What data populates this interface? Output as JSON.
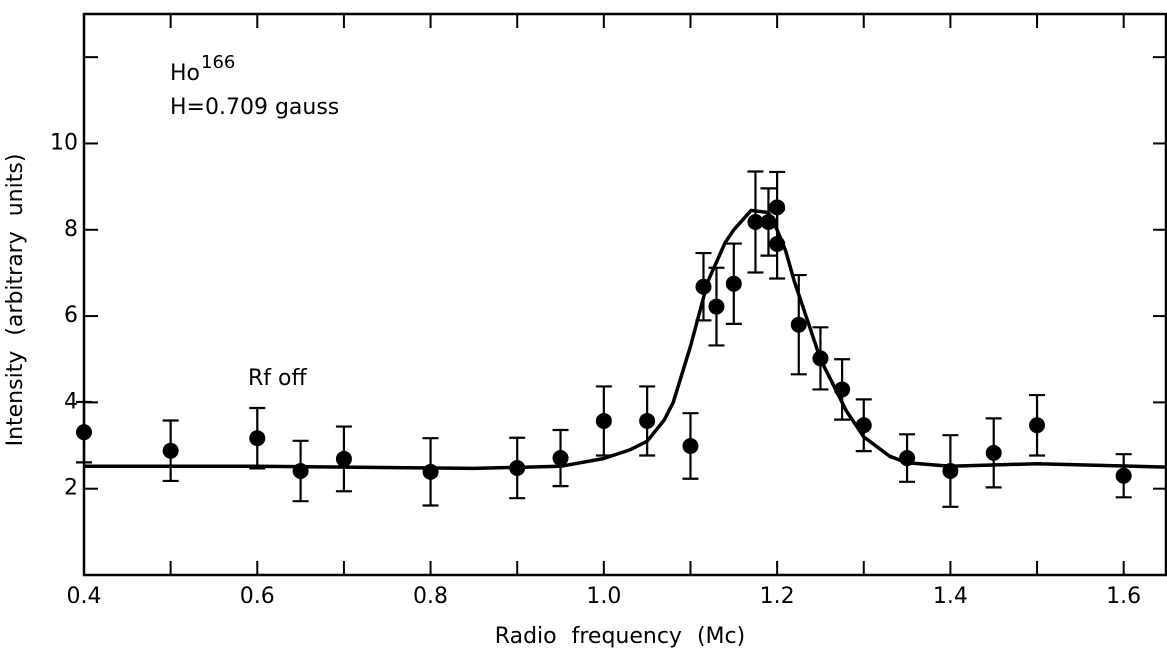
{
  "chart_data": {
    "type": "scatter",
    "x_label": "Radio frequency (Mc)",
    "y_label": "Intensity (arbitrary units)",
    "annotations": {
      "isotope": "Ho",
      "mass_number": "166",
      "field": "H=0.709 gauss",
      "rf_off": "Rf off"
    },
    "xlim": [
      0.4,
      1.65
    ],
    "ylim": [
      0,
      13
    ],
    "xticks": [
      0.4,
      0.6,
      0.8,
      {
        "value": 1.0,
        "label": "1.0"
      },
      1.2,
      1.4,
      1.6
    ],
    "x_minor_ticks": [
      0.5,
      0.7,
      0.9,
      1.1,
      1.3,
      1.5
    ],
    "yticks": [
      2,
      4,
      6,
      8,
      10
    ],
    "y_minor_ticks": [
      12
    ],
    "points": {
      "color": "#000000",
      "x": [
        0.4,
        0.5,
        0.6,
        0.65,
        0.7,
        0.8,
        0.9,
        0.95,
        1.0,
        1.05,
        1.1,
        1.115,
        1.13,
        1.15,
        1.175,
        1.19,
        1.2,
        1.2,
        1.225,
        1.25,
        1.275,
        1.3,
        1.35,
        1.4,
        1.45,
        1.5,
        1.6
      ],
      "values": [
        3.31,
        2.88,
        3.17,
        2.41,
        2.69,
        2.39,
        2.48,
        2.71,
        3.57,
        3.57,
        2.99,
        6.68,
        6.22,
        6.75,
        8.18,
        8.18,
        8.52,
        7.67,
        5.8,
        5.02,
        4.3,
        3.47,
        2.71,
        2.41,
        2.83,
        3.47,
        2.3
      ],
      "errors": [
        0.7,
        0.7,
        0.7,
        0.7,
        0.75,
        0.78,
        0.7,
        0.65,
        0.8,
        0.8,
        0.76,
        0.78,
        0.9,
        0.93,
        1.17,
        0.78,
        0.82,
        0.8,
        1.15,
        0.72,
        0.7,
        0.6,
        0.55,
        0.83,
        0.8,
        0.7,
        0.5
      ]
    },
    "fit": {
      "color": "#000000",
      "x": [
        0.4,
        0.6,
        0.85,
        0.95,
        1.0,
        1.03,
        1.05,
        1.07,
        1.08,
        1.1,
        1.12,
        1.14,
        1.15,
        1.17,
        1.19,
        1.2,
        1.21,
        1.22,
        1.24,
        1.25,
        1.27,
        1.28,
        1.3,
        1.33,
        1.35,
        1.4,
        1.5,
        1.65
      ],
      "values": [
        2.52,
        2.52,
        2.47,
        2.52,
        2.7,
        2.9,
        3.1,
        3.6,
        4.0,
        5.3,
        6.8,
        7.7,
        8.0,
        8.45,
        8.4,
        8.0,
        7.5,
        6.8,
        5.6,
        5.0,
        4.2,
        3.8,
        3.2,
        2.75,
        2.6,
        2.52,
        2.58,
        2.5
      ]
    }
  }
}
